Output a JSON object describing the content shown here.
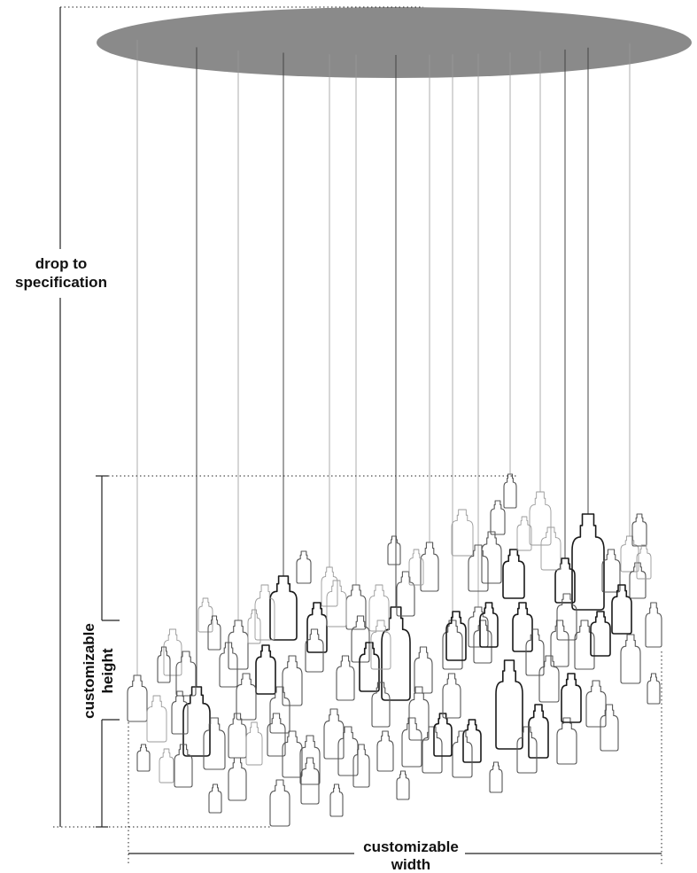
{
  "labels": {
    "drop_line1": "drop to",
    "drop_line2": "specification",
    "height_line1": "customizable",
    "height_line2": "height",
    "width_line1": "customizable",
    "width_line2": "width"
  },
  "colors": {
    "canopy": "#8a8a8a",
    "cable": "#9a9a9a",
    "bottle_dark": "#1a1a1a",
    "bottle_mid": "#555555",
    "bottle_light": "#9a9a9a",
    "dimension": "#222222"
  },
  "icons": {
    "canopy": "ellipse-canopy",
    "pendant": "glass-bottle-icon"
  }
}
